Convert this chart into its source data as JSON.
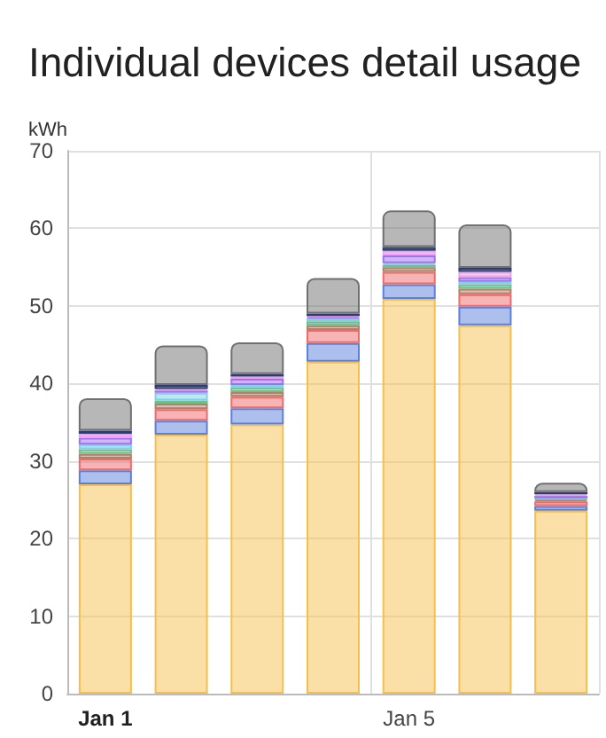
{
  "chart_data": {
    "type": "bar",
    "title": "Individual devices detail usage",
    "ylabel": "kWh",
    "stacked": true,
    "grid": true,
    "categories": [
      "Jan 1",
      null,
      null,
      null,
      "Jan 5",
      null,
      null
    ],
    "ylim": [
      0,
      70
    ],
    "yticks": [
      0,
      10,
      20,
      30,
      40,
      50,
      60,
      70
    ],
    "series": [
      {
        "color": "#f5bf4f",
        "values": [
          27.0,
          33.4,
          34.7,
          42.8,
          50.9,
          47.5,
          23.6
        ]
      },
      {
        "color": "#5b7fdc",
        "values": [
          1.8,
          1.8,
          2.1,
          2.4,
          1.9,
          2.4,
          0.6
        ]
      },
      {
        "color": "#f06a6a",
        "values": [
          1.5,
          1.5,
          1.5,
          1.7,
          1.6,
          1.6,
          0.6
        ]
      },
      {
        "color": "#b0806a",
        "values": [
          0.6,
          0.7,
          0.6,
          0.6,
          0.6,
          0.7,
          0.2
        ]
      },
      {
        "color": "#6fbf8a",
        "values": [
          0.6,
          0.4,
          0.6,
          0.5,
          0.3,
          0.6,
          0.1
        ]
      },
      {
        "color": "#7fd0e8",
        "values": [
          0.6,
          1.0,
          0.3,
          0.4,
          0.2,
          0.3,
          0.1
        ]
      },
      {
        "color": "#a070f0",
        "values": [
          0.9,
          0.3,
          0.8,
          0.2,
          1.0,
          0.6,
          0.3
        ]
      },
      {
        "color": "#f0a0e8",
        "values": [
          0.5,
          0.2,
          0.3,
          0.1,
          0.6,
          0.7,
          0.2
        ]
      },
      {
        "color": "#2c3e70",
        "values": [
          0.4,
          0.5,
          0.3,
          0.3,
          0.5,
          0.5,
          0.3
        ]
      },
      {
        "color": "#707070",
        "values": [
          4.2,
          5.1,
          4.1,
          4.6,
          4.7,
          5.6,
          1.2
        ]
      }
    ]
  }
}
